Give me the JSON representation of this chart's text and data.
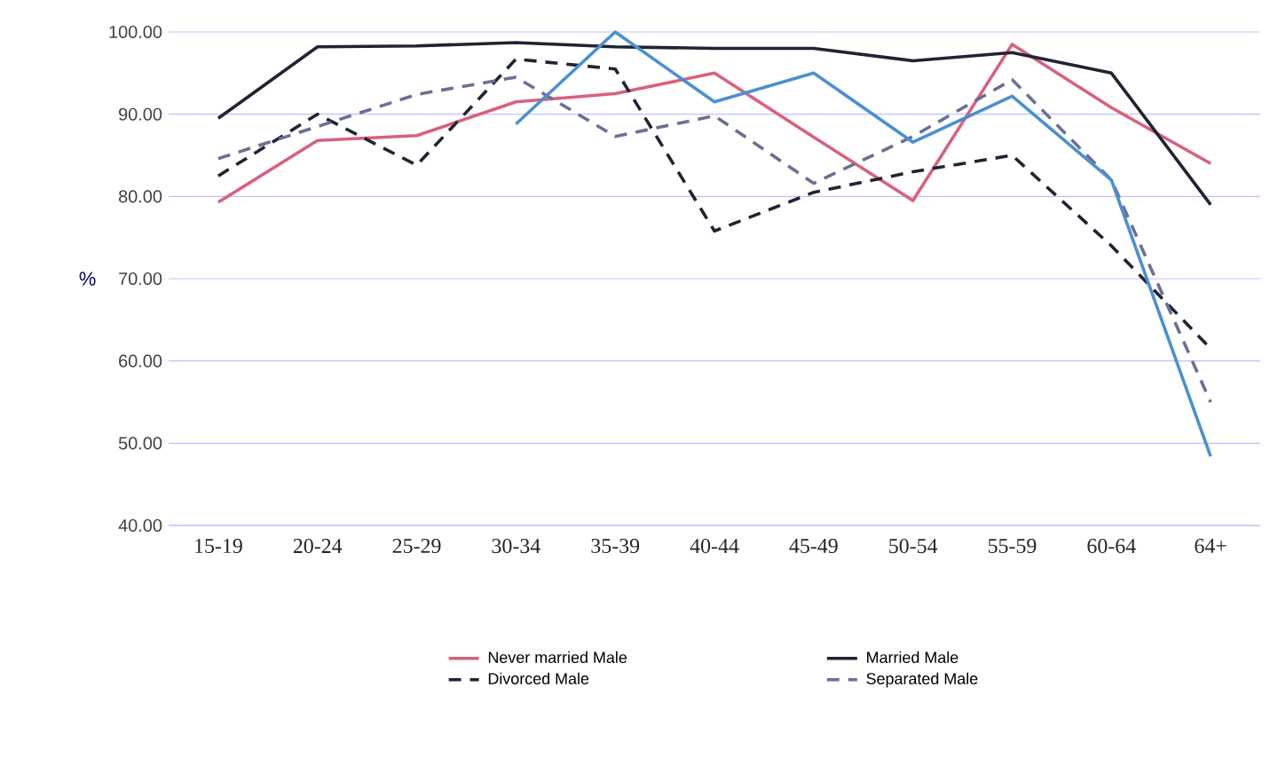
{
  "chart_data": {
    "type": "line",
    "ylabel": "%",
    "categories": [
      "15-19",
      "20-24",
      "25-29",
      "30-34",
      "35-39",
      "40-44",
      "45-49",
      "50-54",
      "55-59",
      "60-64",
      "64+"
    ],
    "series": [
      {
        "name": "Never married Male",
        "color": "#d9607e",
        "line_style": "solid",
        "values": [
          79.3,
          86.8,
          87.4,
          91.5,
          92.5,
          95.0,
          87.2,
          79.5,
          98.5,
          90.8,
          84.0
        ]
      },
      {
        "name": "Married Male",
        "color": "#1f2433",
        "line_style": "solid",
        "values": [
          89.5,
          98.2,
          98.3,
          98.7,
          98.2,
          98.0,
          98.0,
          96.5,
          97.5,
          95.0,
          79.0
        ]
      },
      {
        "name": "Divorced Male",
        "color": "#1f2433",
        "line_style": "dashed",
        "values": [
          82.5,
          90.0,
          83.8,
          96.7,
          95.5,
          75.8,
          80.5,
          83.0,
          85.0,
          74.0,
          61.5
        ]
      },
      {
        "name": "Separated Male",
        "color": "#6a6f94",
        "line_style": "dashed",
        "values": [
          84.6,
          88.5,
          92.4,
          94.5,
          87.3,
          89.8,
          81.6,
          87.3,
          94.2,
          82.0,
          55.0
        ]
      },
      {
        "color": "#4a90d0",
        "line_style": "solid",
        "values": [
          null,
          null,
          null,
          88.8,
          100.0,
          91.5,
          95.0,
          86.6,
          92.2,
          82.0,
          48.4
        ]
      }
    ],
    "ylim": [
      40,
      100
    ],
    "yticks": [
      {
        "value": 40,
        "label": "40.00"
      },
      {
        "value": 50,
        "label": "50.00"
      },
      {
        "value": 60,
        "label": "60.00"
      },
      {
        "value": 70,
        "label": "70.00"
      },
      {
        "value": 80,
        "label": "80.00"
      },
      {
        "value": 90,
        "label": "90.00"
      },
      {
        "value": 100,
        "label": "100.00"
      }
    ],
    "grid": "y",
    "legend": "bottom"
  }
}
